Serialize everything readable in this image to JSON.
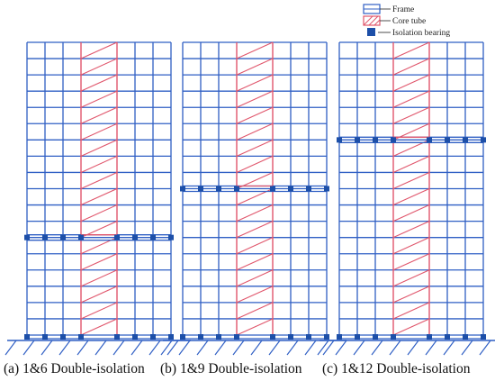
{
  "legend": {
    "frame": "Frame",
    "core": "Core tube",
    "bearing": "Isolation bearing"
  },
  "colors": {
    "frame": "#2f5fc4",
    "core": "#e0566c",
    "bearing": "#1d4fa8",
    "ground": "#2f5fc4"
  },
  "buildings": [
    {
      "caption": "(a) 1&6 Double-isolation",
      "stories": 18,
      "isolation_story": 6
    },
    {
      "caption": "(b) 1&9 Double-isolation",
      "stories": 18,
      "isolation_story": 9
    },
    {
      "caption": "(c) 1&12 Double-isolation",
      "stories": 18,
      "isolation_story": 12
    }
  ]
}
